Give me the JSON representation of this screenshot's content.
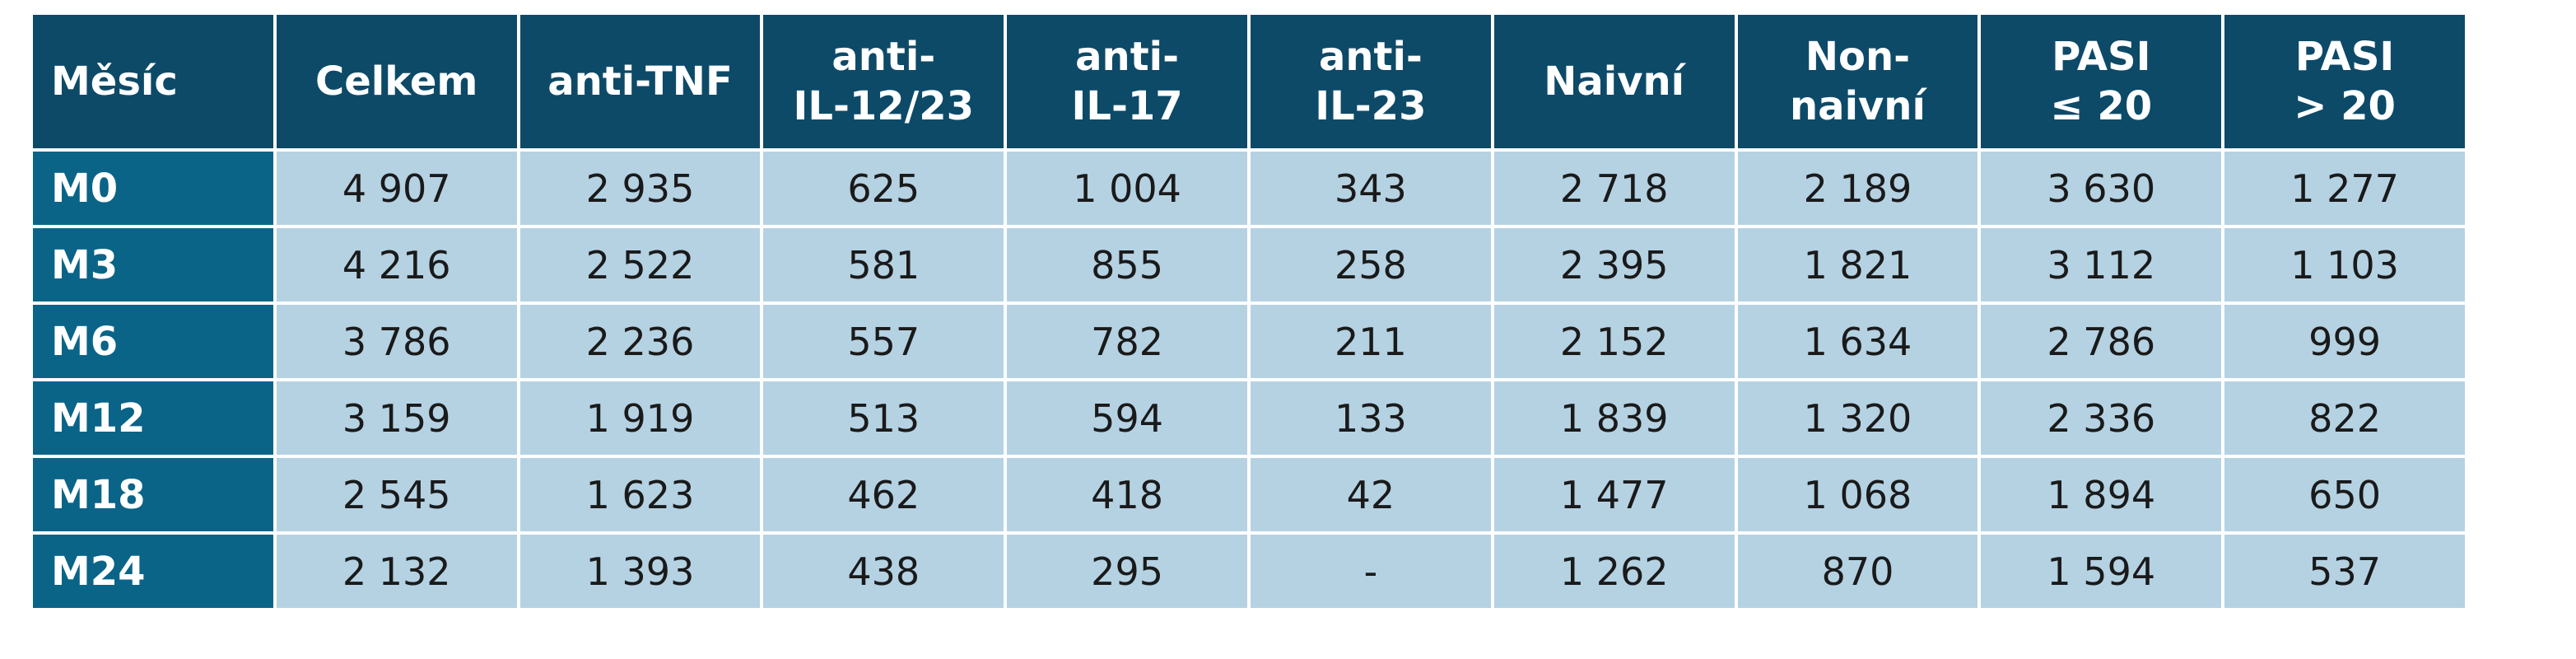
{
  "table": {
    "header": [
      "Měsíc",
      "Celkem",
      "anti-TNF",
      "anti-\nIL-12/23",
      "anti-\nIL-17",
      "anti-\nIL-23",
      "Naivní",
      "Non-\nnaivní",
      "PASI\n≤ 20",
      "PASI\n> 20"
    ],
    "rows": [
      [
        "M0",
        "4 907",
        "2 935",
        "625",
        "1 004",
        "343",
        "2 718",
        "2 189",
        "3 630",
        "1 277"
      ],
      [
        "M3",
        "4 216",
        "2 522",
        "581",
        "855",
        "258",
        "2 395",
        "1 821",
        "3 112",
        "1 103"
      ],
      [
        "M6",
        "3 786",
        "2 236",
        "557",
        "782",
        "211",
        "2 152",
        "1 634",
        "2 786",
        "999"
      ],
      [
        "M12",
        "3 159",
        "1 919",
        "513",
        "594",
        "133",
        "1 839",
        "1 320",
        "2 336",
        "822"
      ],
      [
        "M18",
        "2 545",
        "1 623",
        "462",
        "418",
        "42",
        "1 477",
        "1 068",
        "1 894",
        "650"
      ],
      [
        "M24",
        "2 132",
        "1 393",
        "438",
        "295",
        "-",
        "1 262",
        "870",
        "1 594",
        "537"
      ]
    ]
  }
}
